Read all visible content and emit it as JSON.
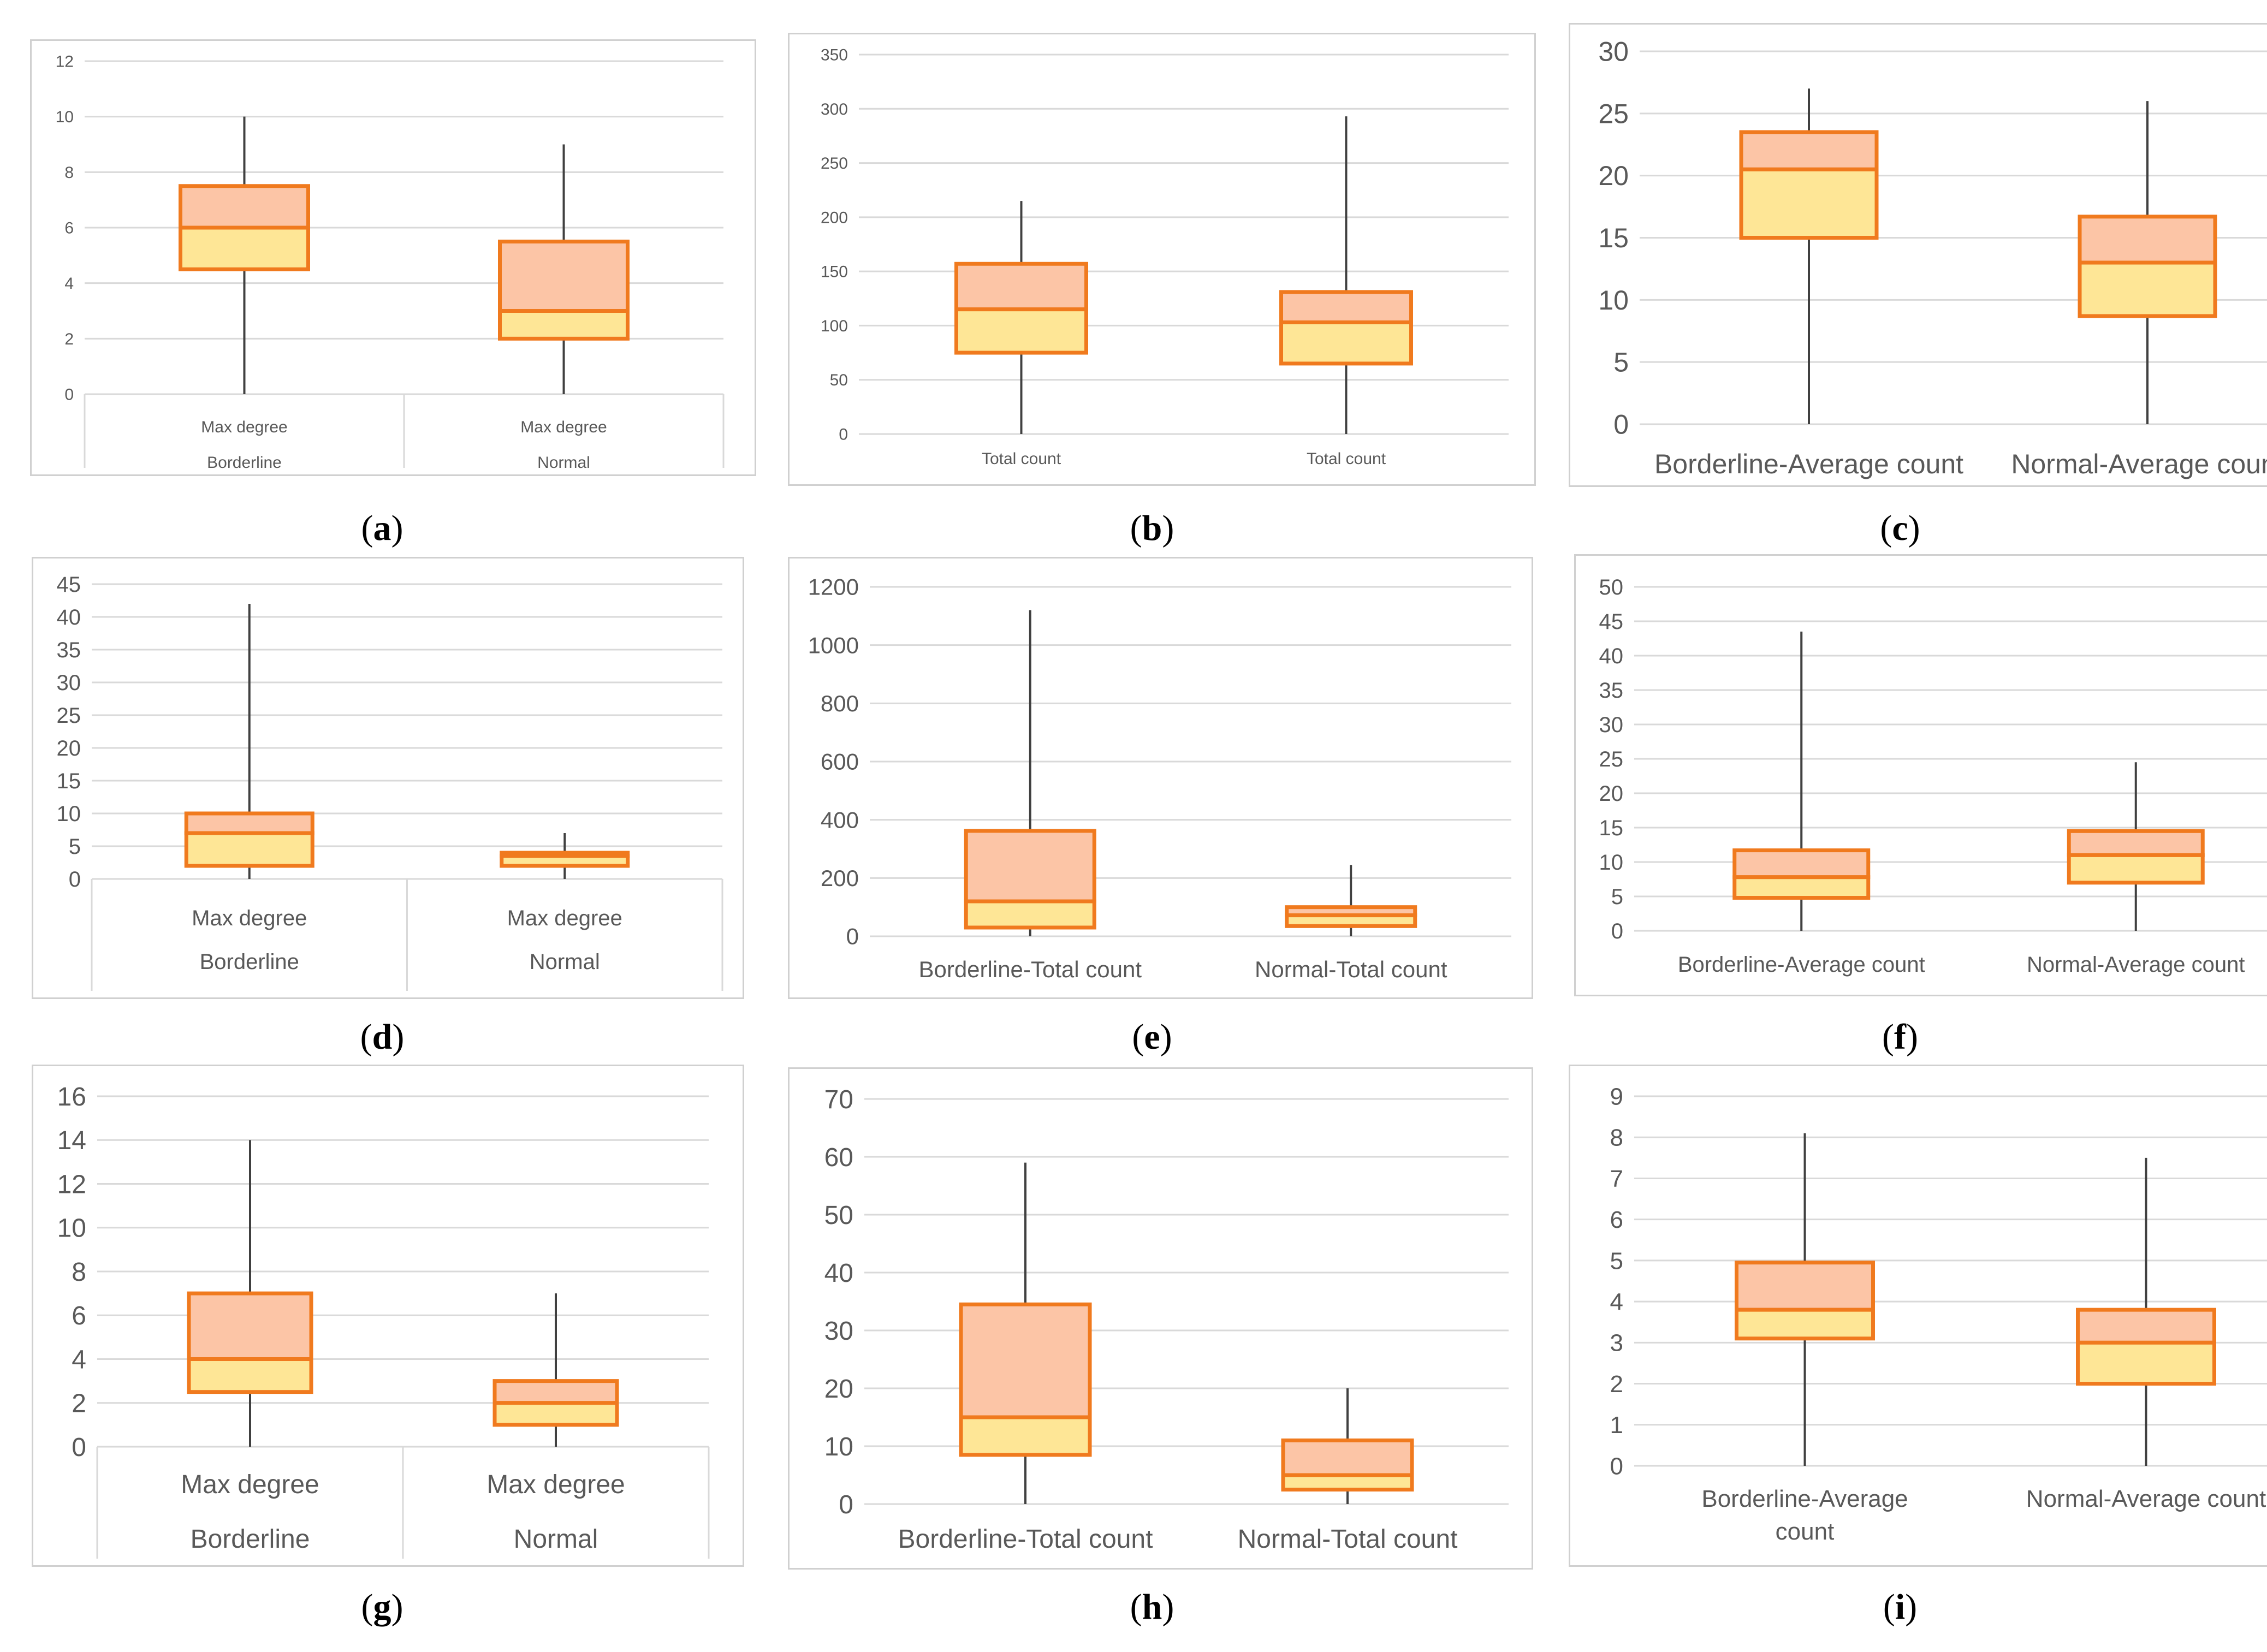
{
  "colors": {
    "box_stroke": "#F07A1E",
    "upper_fill": "#FCC5A6",
    "lower_fill": "#FEE696",
    "whisker": "#404040",
    "grid": "#D9D9D9",
    "frame": "#D0D0D0",
    "tick_text": "#595959"
  },
  "chart_data": [
    {
      "id": "a",
      "type": "box",
      "caption": "a",
      "ylim": [
        0,
        12
      ],
      "yticks": [
        "0",
        "2",
        "4",
        "6",
        "8",
        "10",
        "12"
      ],
      "grouped_axis": true,
      "boxes": [
        {
          "label": "Max degree",
          "group": "Borderline",
          "min": 0,
          "q1": 4.5,
          "median": 6,
          "q3": 7.5,
          "max": 10
        },
        {
          "label": "Max degree",
          "group": "Normal",
          "min": 0,
          "q1": 2,
          "median": 3,
          "q3": 5.5,
          "max": 9
        }
      ]
    },
    {
      "id": "b",
      "type": "box",
      "caption": "b",
      "ylim": [
        0,
        350
      ],
      "yticks": [
        "0",
        "50",
        "100",
        "150",
        "200",
        "250",
        "300",
        "350"
      ],
      "grouped_axis": false,
      "boxes": [
        {
          "label": "Total count",
          "min": 0,
          "q1": 75,
          "median": 115,
          "q3": 157,
          "max": 215
        },
        {
          "label": "Total count",
          "min": 0,
          "q1": 65,
          "median": 103,
          "q3": 131,
          "max": 293
        }
      ]
    },
    {
      "id": "c",
      "type": "box",
      "caption": "c",
      "ylim": [
        0,
        30
      ],
      "yticks": [
        "0",
        "5",
        "10",
        "15",
        "20",
        "25",
        "30"
      ],
      "grouped_axis": false,
      "boxes": [
        {
          "label": "Borderline-Average count",
          "min": 0,
          "q1": 15,
          "median": 20.5,
          "q3": 23.5,
          "max": 27
        },
        {
          "label": "Normal-Average count",
          "min": 0,
          "q1": 8.7,
          "median": 13,
          "q3": 16.7,
          "max": 26
        }
      ]
    },
    {
      "id": "d",
      "type": "box",
      "caption": "d",
      "ylim": [
        0,
        45
      ],
      "yticks": [
        "0",
        "5",
        "10",
        "15",
        "20",
        "25",
        "30",
        "35",
        "40",
        "45"
      ],
      "grouped_axis": true,
      "boxes": [
        {
          "label": "Max degree",
          "group": "Borderline",
          "min": 0,
          "q1": 2,
          "median": 7,
          "q3": 10,
          "max": 42
        },
        {
          "label": "Max degree",
          "group": "Normal",
          "min": 0,
          "q1": 2,
          "median": 3.5,
          "q3": 4,
          "max": 7
        }
      ]
    },
    {
      "id": "e",
      "type": "box",
      "caption": "e",
      "ylim": [
        0,
        1200
      ],
      "yticks": [
        "0",
        "200",
        "400",
        "600",
        "800",
        "1000",
        "1200"
      ],
      "grouped_axis": false,
      "boxes": [
        {
          "label": "Borderline-Total count",
          "min": 0,
          "q1": 30,
          "median": 120,
          "q3": 362,
          "max": 1120
        },
        {
          "label": "Normal-Total count",
          "min": 0,
          "q1": 35,
          "median": 72,
          "q3": 100,
          "max": 245
        }
      ]
    },
    {
      "id": "f",
      "type": "box",
      "caption": "f",
      "ylim": [
        0,
        50
      ],
      "yticks": [
        "0",
        "5",
        "10",
        "15",
        "20",
        "25",
        "30",
        "35",
        "40",
        "45",
        "50"
      ],
      "grouped_axis": false,
      "boxes": [
        {
          "label": "Borderline-Average count",
          "min": 0,
          "q1": 4.8,
          "median": 7.8,
          "q3": 11.7,
          "max": 43.5
        },
        {
          "label": "Normal-Average count",
          "min": 0,
          "q1": 7,
          "median": 11,
          "q3": 14.5,
          "max": 24.5
        }
      ]
    },
    {
      "id": "g",
      "type": "box",
      "caption": "g",
      "ylim": [
        0,
        16
      ],
      "yticks": [
        "0",
        "2",
        "4",
        "6",
        "8",
        "10",
        "12",
        "14",
        "16"
      ],
      "grouped_axis": true,
      "boxes": [
        {
          "label": "Max degree",
          "group": "Borderline",
          "min": 0,
          "q1": 2.5,
          "median": 4,
          "q3": 7,
          "max": 14
        },
        {
          "label": "Max degree",
          "group": "Normal",
          "min": 0,
          "q1": 1,
          "median": 2,
          "q3": 3,
          "max": 7
        }
      ]
    },
    {
      "id": "h",
      "type": "box",
      "caption": "h",
      "ylim": [
        0,
        70
      ],
      "yticks": [
        "0",
        "10",
        "20",
        "30",
        "40",
        "50",
        "60",
        "70"
      ],
      "grouped_axis": false,
      "boxes": [
        {
          "label": "Borderline-Total count",
          "min": 0,
          "q1": 8.5,
          "median": 15,
          "q3": 34.5,
          "max": 59
        },
        {
          "label": "Normal-Total count",
          "min": 0,
          "q1": 2.5,
          "median": 5,
          "q3": 11,
          "max": 20
        }
      ]
    },
    {
      "id": "i",
      "type": "box",
      "caption": "i",
      "ylim": [
        0,
        9
      ],
      "yticks": [
        "0",
        "1",
        "2",
        "3",
        "4",
        "5",
        "6",
        "7",
        "8",
        "9"
      ],
      "grouped_axis": false,
      "boxes": [
        {
          "label": "Borderline-Average count",
          "min": 0,
          "q1": 3.1,
          "median": 3.8,
          "q3": 4.95,
          "max": 8.1
        },
        {
          "label": "Normal-Average count",
          "min": 0,
          "q1": 2,
          "median": 3,
          "q3": 3.8,
          "max": 7.5
        }
      ]
    }
  ]
}
